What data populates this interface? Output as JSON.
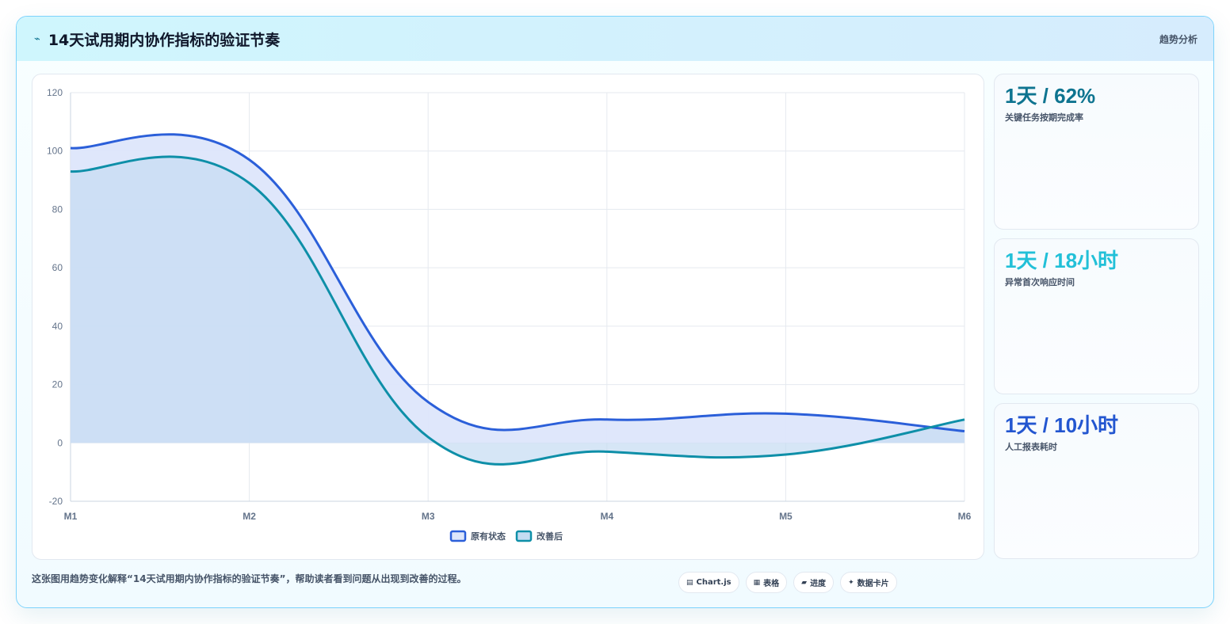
{
  "header": {
    "icon": "⌁",
    "title": "14天试用期内协作指标的验证节奏",
    "tag": "趋势分析"
  },
  "stats": [
    {
      "value": "1天 / 62%",
      "label": "关键任务按期完成率",
      "color": "#0e7490"
    },
    {
      "value": "1天 / 18小时",
      "label": "异常首次响应时间",
      "color": "#22c0d8"
    },
    {
      "value": "1天 / 10小时",
      "label": "人工报表耗时",
      "color": "#2356d0"
    }
  ],
  "footer": {
    "text": "这张图用趋势变化解释“14天试用期内协作指标的验证节奏”，帮助读者看到问题从出现到改善的过程。"
  },
  "chips": [
    {
      "icon": "▤",
      "label": "Chart.js",
      "icon_name": "chart-icon"
    },
    {
      "icon": "▦",
      "label": "表格",
      "icon_name": "table-icon"
    },
    {
      "icon": "▰",
      "label": "进度",
      "icon_name": "progress-icon"
    },
    {
      "icon": "✦",
      "label": "数据卡片",
      "icon_name": "sparkle-icon"
    }
  ],
  "chart_data": {
    "type": "line",
    "categories": [
      "M1",
      "M2",
      "M3",
      "M4",
      "M5",
      "M6"
    ],
    "series": [
      {
        "name": "原有状态",
        "values": [
          101,
          97,
          14,
          8,
          10,
          4
        ],
        "color": "#2b5fd9",
        "fill": "#dde6fb"
      },
      {
        "name": "改善后",
        "values": [
          93,
          89,
          2,
          -3,
          -4,
          8
        ],
        "color": "#0e8fa8",
        "fill": "#c4dcf2"
      }
    ],
    "ylim": [
      -20,
      120
    ],
    "yticks": [
      -20,
      0,
      20,
      40,
      60,
      80,
      100,
      120
    ],
    "grid": true,
    "legend": "bottom"
  }
}
